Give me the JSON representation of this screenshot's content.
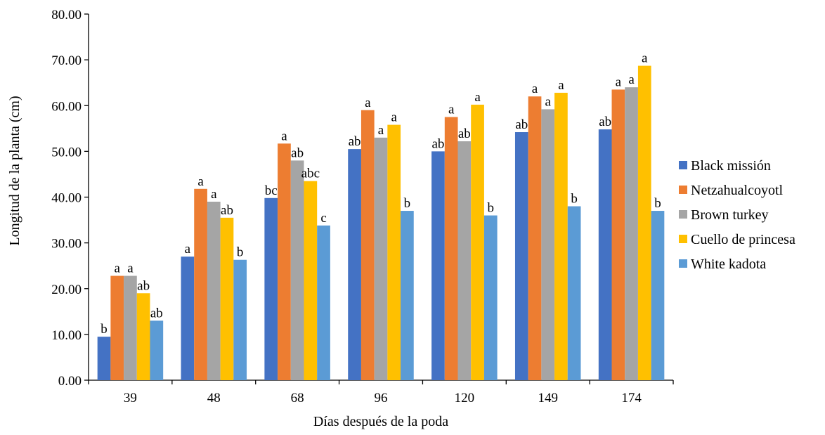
{
  "chart_data": {
    "type": "bar",
    "title": "",
    "xlabel": "Días después de la poda",
    "ylabel": "Longitud de la planta (cm)",
    "ylim": [
      0,
      80
    ],
    "yticks": [
      "0.00",
      "10.00",
      "20.00",
      "30.00",
      "40.00",
      "50.00",
      "60.00",
      "70.00",
      "80.00"
    ],
    "grid": false,
    "legend_position": "right",
    "categories": [
      "39",
      "48",
      "68",
      "96",
      "120",
      "149",
      "174"
    ],
    "series": [
      {
        "name": "Black missión",
        "color": "#4472C4",
        "values": [
          9.5,
          27.0,
          39.8,
          50.5,
          50.0,
          54.2,
          54.8
        ],
        "labels": [
          "b",
          "a",
          "bc",
          "ab",
          "ab",
          "ab",
          "ab"
        ]
      },
      {
        "name": "Netzahualcoyotl",
        "color": "#ED7D31",
        "values": [
          22.8,
          41.8,
          51.7,
          59.0,
          57.5,
          62.0,
          63.5
        ],
        "labels": [
          "a",
          "a",
          "a",
          "a",
          "a",
          "a",
          "a"
        ]
      },
      {
        "name": "Brown turkey",
        "color": "#A5A5A5",
        "values": [
          22.8,
          39.0,
          48.0,
          53.0,
          52.2,
          59.2,
          64.0
        ],
        "labels": [
          "a",
          "a",
          "ab",
          "a",
          "ab",
          "a",
          "a"
        ]
      },
      {
        "name": "Cuello de princesa",
        "color": "#FFC000",
        "values": [
          19.0,
          35.5,
          43.5,
          55.8,
          60.2,
          62.8,
          68.7
        ],
        "labels": [
          "ab",
          "ab",
          "abc",
          "a",
          "a",
          "a",
          "a"
        ]
      },
      {
        "name": "White kadota",
        "color": "#5B9BD5",
        "values": [
          13.0,
          26.3,
          33.8,
          37.0,
          36.0,
          38.0,
          37.0
        ],
        "labels": [
          "ab",
          "b",
          "c",
          "b",
          "b",
          "b",
          "b"
        ]
      }
    ]
  }
}
